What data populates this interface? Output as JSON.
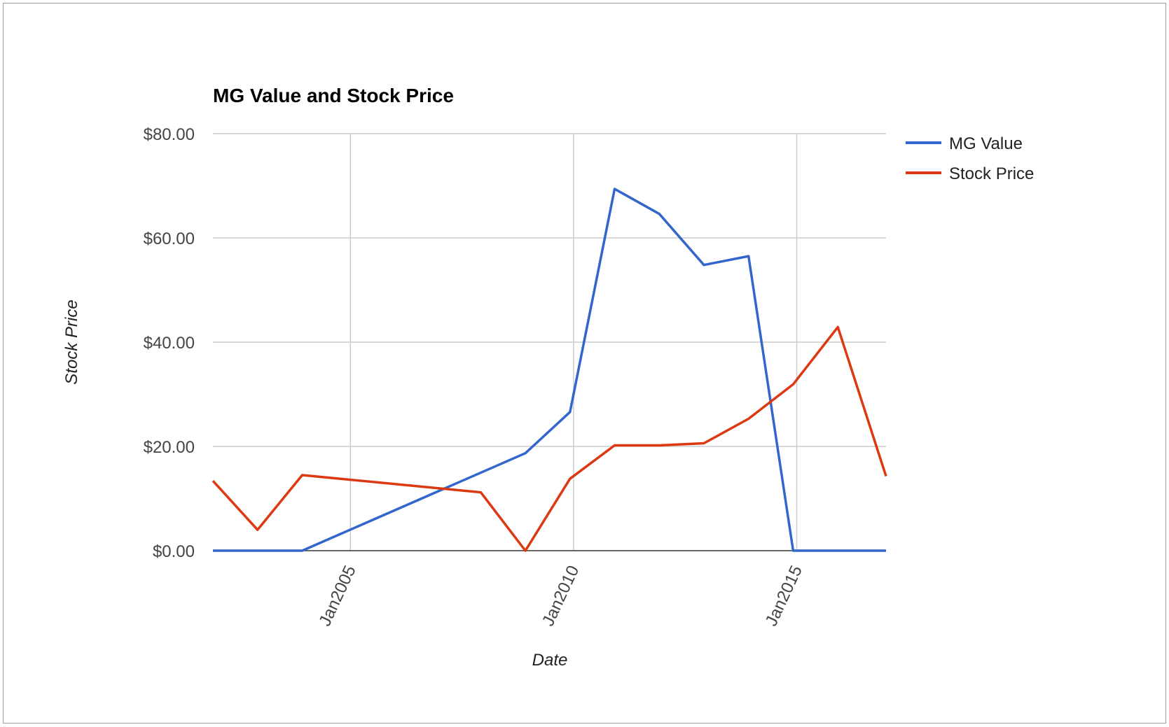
{
  "chart_data": {
    "type": "line",
    "title": "MG Value and Stock Price",
    "xlabel": "Date",
    "ylabel": "Stock Price",
    "x_tick_labels": [
      "Jan2005",
      "Jan2010",
      "Jan2015"
    ],
    "x_ticks": [
      2005.0,
      2010.0,
      2015.0
    ],
    "xlim": [
      2001.92,
      2017.0
    ],
    "ylim": [
      0,
      80
    ],
    "y_ticks": [
      0,
      20,
      40,
      60,
      80
    ],
    "y_tick_labels": [
      "$0.00",
      "$20.00",
      "$40.00",
      "$60.00",
      "$80.00"
    ],
    "grid": true,
    "legend_position": "right",
    "series": [
      {
        "name": "MG Value",
        "color": "#3366cc",
        "x": [
          2001.92,
          2002.92,
          2003.92,
          2008.92,
          2009.92,
          2010.92,
          2011.92,
          2012.92,
          2013.92,
          2014.92,
          2015.92,
          2017.0
        ],
        "y": [
          0,
          0,
          0,
          18.7,
          26.6,
          69.4,
          64.6,
          54.8,
          56.5,
          0,
          0,
          0
        ]
      },
      {
        "name": "Stock Price",
        "color": "#dc3912",
        "x": [
          2001.92,
          2002.92,
          2003.92,
          2007.92,
          2008.92,
          2009.92,
          2010.92,
          2011.92,
          2012.92,
          2013.92,
          2014.92,
          2015.92,
          2017.0
        ],
        "y": [
          13.4,
          4.0,
          14.5,
          11.2,
          0,
          13.8,
          20.2,
          20.2,
          20.6,
          25.3,
          31.9,
          42.9,
          14.3
        ]
      }
    ]
  }
}
